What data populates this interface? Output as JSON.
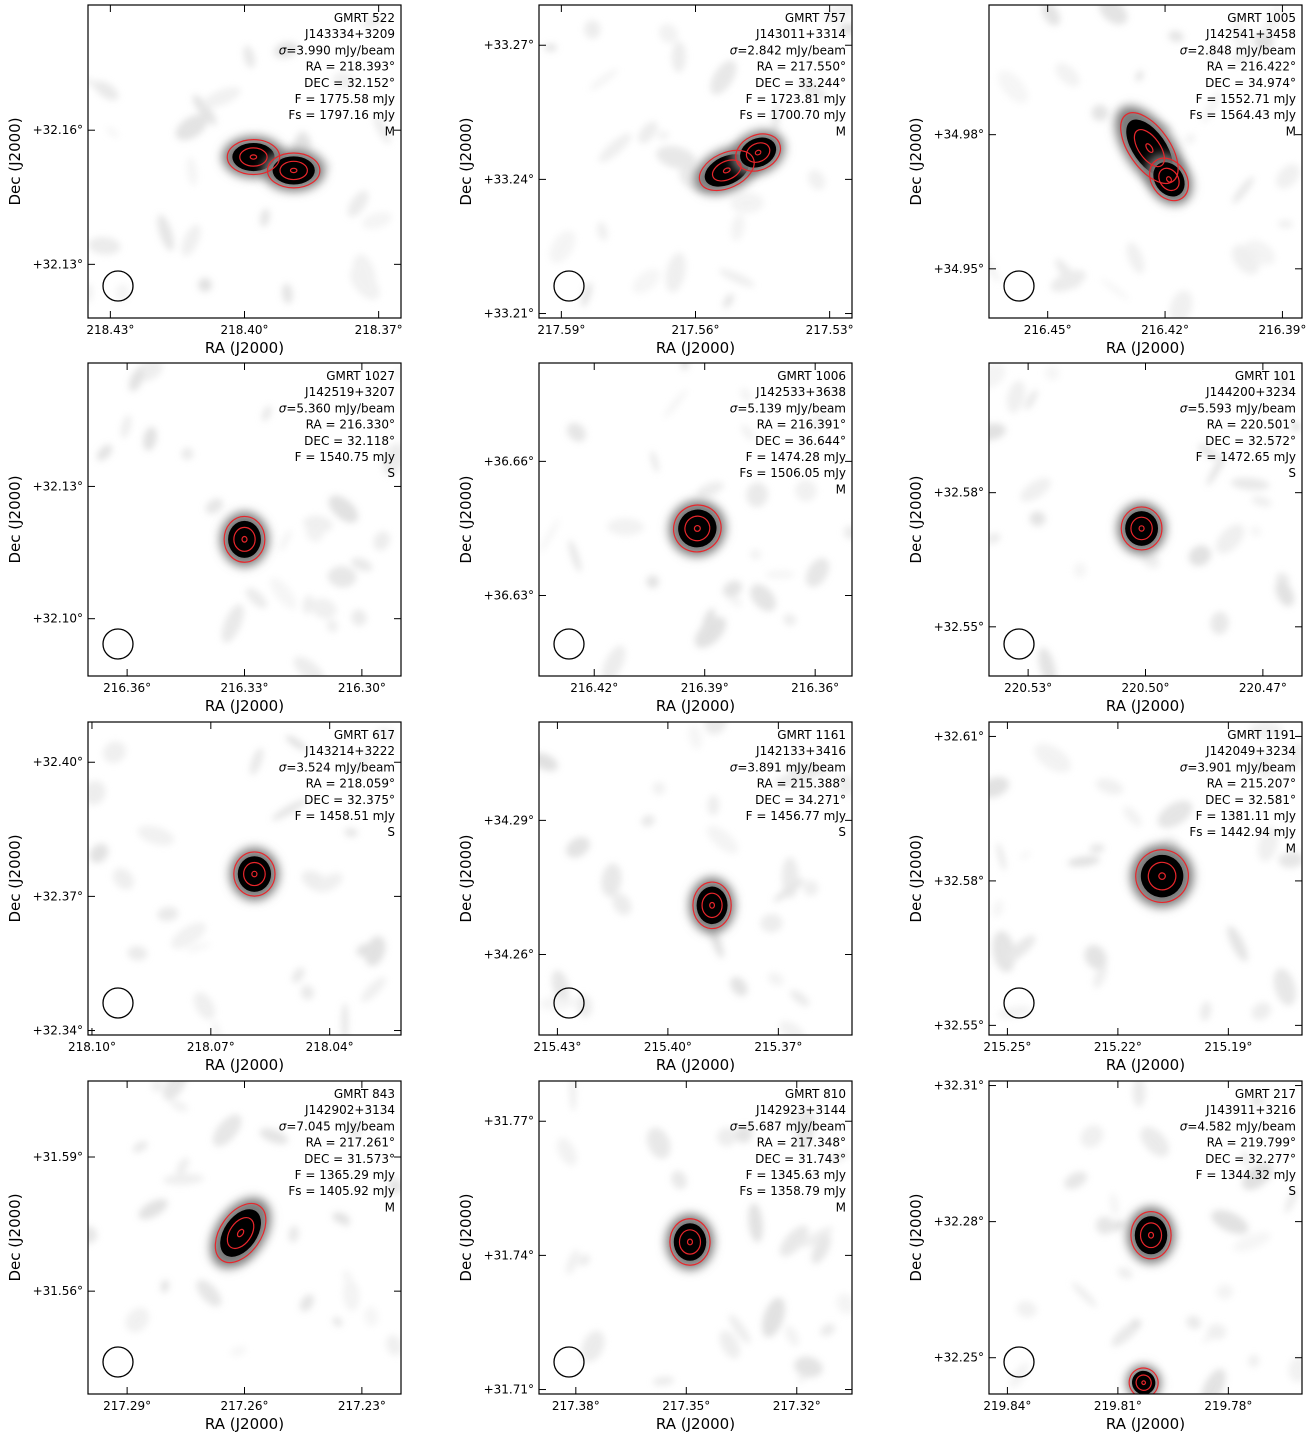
{
  "axes": {
    "xlabel": "RA (J2000)",
    "ylabel": "Dec (J2000)"
  },
  "colors": {
    "contour": "#e8262b",
    "frame": "#000000",
    "source": "#000000",
    "background": "#ffffff"
  },
  "chart_data": [
    {
      "type": "heatmap",
      "name": "GMRT 522",
      "id": "J143334+3209",
      "sigma": "3.990 mJy/beam",
      "ra_label": "RA = 218.393°",
      "dec_label": "DEC = 32.152°",
      "f_label": "F = 1775.58 mJy",
      "fs_label": "Fs = 1797.16 mJy",
      "class": "M",
      "ra": 218.393,
      "dec": 32.152,
      "xlim": [
        218.435,
        218.365
      ],
      "ylim": [
        32.118,
        32.188
      ],
      "xticks": [
        218.43,
        218.4,
        218.37
      ],
      "xtick_labels": [
        "218.43°",
        "218.40°",
        "218.37°"
      ],
      "yticks": [
        32.13,
        32.16
      ],
      "ytick_labels": [
        "+32.13°",
        "+32.16°"
      ],
      "components": [
        {
          "ra": 218.398,
          "dec": 32.154,
          "a": 0.0045,
          "b": 0.003,
          "pa": 0
        },
        {
          "ra": 218.389,
          "dec": 32.151,
          "a": 0.0045,
          "b": 0.003,
          "pa": 0
        }
      ]
    },
    {
      "type": "heatmap",
      "name": "GMRT 757",
      "id": "J143011+3314",
      "sigma": "2.842 mJy/beam",
      "ra_label": "RA = 217.550°",
      "dec_label": "DEC = 33.244°",
      "f_label": "F = 1723.81 mJy",
      "fs_label": "Fs = 1700.70 mJy",
      "class": "M",
      "ra": 217.55,
      "dec": 33.244,
      "xlim": [
        217.595,
        217.525
      ],
      "ylim": [
        33.209,
        33.279
      ],
      "xticks": [
        217.59,
        217.56,
        217.53
      ],
      "xtick_labels": [
        "217.59°",
        "217.56°",
        "217.53°"
      ],
      "yticks": [
        33.21,
        33.24,
        33.27
      ],
      "ytick_labels": [
        "+33.21°",
        "+33.24°",
        "+33.27°"
      ],
      "components": [
        {
          "ra": 217.553,
          "dec": 33.242,
          "a": 0.005,
          "b": 0.003,
          "pa": -25
        },
        {
          "ra": 217.546,
          "dec": 33.246,
          "a": 0.004,
          "b": 0.003,
          "pa": -25
        }
      ]
    },
    {
      "type": "heatmap",
      "name": "GMRT 1005",
      "id": "J142541+3458",
      "sigma": "2.848 mJy/beam",
      "ra_label": "RA = 216.422°",
      "dec_label": "DEC = 34.974°",
      "f_label": "F = 1552.71 mJy",
      "fs_label": "Fs = 1564.43 mJy",
      "class": "M",
      "ra": 216.422,
      "dec": 34.974,
      "xlim": [
        216.465,
        216.385
      ],
      "ylim": [
        34.939,
        35.009
      ],
      "xticks": [
        216.45,
        216.42,
        216.39
      ],
      "xtick_labels": [
        "216.45°",
        "216.42°",
        "216.39°"
      ],
      "yticks": [
        34.95,
        34.98
      ],
      "ytick_labels": [
        "+34.95°",
        "+34.98°"
      ],
      "components": [
        {
          "ra": 216.424,
          "dec": 34.977,
          "a": 0.008,
          "b": 0.0035,
          "pa": 55
        },
        {
          "ra": 216.419,
          "dec": 34.97,
          "a": 0.0045,
          "b": 0.003,
          "pa": 55
        }
      ]
    },
    {
      "type": "heatmap",
      "name": "GMRT 1027",
      "id": "J142519+3207",
      "sigma": "5.360 mJy/beam",
      "ra_label": "RA = 216.330°",
      "dec_label": "DEC = 32.118°",
      "f_label": "F = 1540.75 mJy",
      "fs_label": "",
      "class": "S",
      "ra": 216.33,
      "dec": 32.118,
      "xlim": [
        216.37,
        216.29
      ],
      "ylim": [
        32.087,
        32.158
      ],
      "xticks": [
        216.36,
        216.33,
        216.3
      ],
      "xtick_labels": [
        "216.36°",
        "216.33°",
        "216.30°"
      ],
      "yticks": [
        32.1,
        32.13
      ],
      "ytick_labels": [
        "+32.10°",
        "+32.13°"
      ],
      "components": [
        {
          "ra": 216.33,
          "dec": 32.118,
          "a": 0.004,
          "b": 0.004,
          "pa": 0
        }
      ]
    },
    {
      "type": "heatmap",
      "name": "GMRT 1006",
      "id": "J142533+3638",
      "sigma": "5.139 mJy/beam",
      "ra_label": "RA = 216.391°",
      "dec_label": "DEC = 36.644°",
      "f_label": "F = 1474.28 mJy",
      "fs_label": "Fs = 1506.05 mJy",
      "class": "M",
      "ra": 216.391,
      "dec": 36.644,
      "xlim": [
        216.435,
        216.35
      ],
      "ylim": [
        36.612,
        36.682
      ],
      "xticks": [
        216.42,
        216.39,
        216.36
      ],
      "xtick_labels": [
        "216.42°",
        "216.39°",
        "216.36°"
      ],
      "yticks": [
        36.63,
        36.66
      ],
      "ytick_labels": [
        "+36.63°",
        "+36.66°"
      ],
      "components": [
        {
          "ra": 216.392,
          "dec": 36.645,
          "a": 0.005,
          "b": 0.004,
          "pa": -30
        }
      ]
    },
    {
      "type": "heatmap",
      "name": "GMRT 101",
      "id": "J144200+3234",
      "sigma": "5.593 mJy/beam",
      "ra_label": "RA = 220.501°",
      "dec_label": "DEC = 32.572°",
      "f_label": "F = 1472.65 mJy",
      "fs_label": "",
      "class": "S",
      "ra": 220.501,
      "dec": 32.572,
      "xlim": [
        220.54,
        220.46
      ],
      "ylim": [
        32.539,
        32.609
      ],
      "xticks": [
        220.53,
        220.5,
        220.47
      ],
      "xtick_labels": [
        "220.53°",
        "220.50°",
        "220.47°"
      ],
      "yticks": [
        32.55,
        32.58
      ],
      "ytick_labels": [
        "+32.55°",
        "+32.58°"
      ],
      "components": [
        {
          "ra": 220.501,
          "dec": 32.572,
          "a": 0.004,
          "b": 0.0037,
          "pa": 0
        }
      ]
    },
    {
      "type": "heatmap",
      "name": "GMRT 617",
      "id": "J143214+3222",
      "sigma": "3.524 mJy/beam",
      "ra_label": "RA = 218.059°",
      "dec_label": "DEC = 32.375°",
      "f_label": "F = 1458.51 mJy",
      "fs_label": "",
      "class": "S",
      "ra": 218.059,
      "dec": 32.375,
      "xlim": [
        218.101,
        218.022
      ],
      "ylim": [
        32.339,
        32.409
      ],
      "xticks": [
        218.1,
        218.07,
        218.04
      ],
      "xtick_labels": [
        "218.10°",
        "218.07°",
        "218.04°"
      ],
      "yticks": [
        32.34,
        32.37,
        32.4
      ],
      "ytick_labels": [
        "+32.34°",
        "+32.37°",
        "+32.40°"
      ],
      "components": [
        {
          "ra": 218.059,
          "dec": 32.375,
          "a": 0.004,
          "b": 0.0038,
          "pa": 0
        }
      ]
    },
    {
      "type": "heatmap",
      "name": "GMRT 1161",
      "id": "J142133+3416",
      "sigma": "3.891 mJy/beam",
      "ra_label": "RA = 215.388°",
      "dec_label": "DEC = 34.271°",
      "f_label": "F = 1456.77 mJy",
      "fs_label": "",
      "class": "S",
      "ra": 215.388,
      "dec": 34.271,
      "xlim": [
        215.435,
        215.35
      ],
      "ylim": [
        34.242,
        34.312
      ],
      "xticks": [
        215.43,
        215.4,
        215.37
      ],
      "xtick_labels": [
        "215.43°",
        "215.40°",
        "215.37°"
      ],
      "yticks": [
        34.26,
        34.29
      ],
      "ytick_labels": [
        "+34.26°",
        "+34.29°"
      ],
      "components": [
        {
          "ra": 215.388,
          "dec": 34.271,
          "a": 0.004,
          "b": 0.004,
          "pa": 0
        }
      ]
    },
    {
      "type": "heatmap",
      "name": "GMRT 1191",
      "id": "J142049+3234",
      "sigma": "3.901 mJy/beam",
      "ra_label": "RA = 215.207°",
      "dec_label": "DEC = 32.581°",
      "f_label": "F = 1381.11 mJy",
      "fs_label": "Fs = 1442.94 mJy",
      "class": "M",
      "ra": 215.207,
      "dec": 32.581,
      "xlim": [
        215.255,
        215.17
      ],
      "ylim": [
        32.548,
        32.613
      ],
      "xticks": [
        215.25,
        215.22,
        215.19
      ],
      "xtick_labels": [
        "215.25°",
        "215.22°",
        "215.19°"
      ],
      "yticks": [
        32.55,
        32.58,
        32.61
      ],
      "ytick_labels": [
        "+32.55°",
        "+32.58°",
        "+32.61°"
      ],
      "components": [
        {
          "ra": 215.208,
          "dec": 32.581,
          "a": 0.0055,
          "b": 0.0042,
          "pa": -35
        }
      ]
    },
    {
      "type": "heatmap",
      "name": "GMRT 843",
      "id": "J142902+3134",
      "sigma": "7.045 mJy/beam",
      "ra_label": "RA = 217.261°",
      "dec_label": "DEC = 31.573°",
      "f_label": "F = 1365.29 mJy",
      "fs_label": "Fs = 1405.92 mJy",
      "class": "M",
      "ra": 217.261,
      "dec": 31.573,
      "xlim": [
        217.3,
        217.22
      ],
      "ylim": [
        31.537,
        31.607
      ],
      "xticks": [
        217.29,
        217.26,
        217.23
      ],
      "xtick_labels": [
        "217.29°",
        "217.26°",
        "217.23°"
      ],
      "yticks": [
        31.56,
        31.59
      ],
      "ytick_labels": [
        "+31.56°",
        "+31.59°"
      ],
      "components": [
        {
          "ra": 217.261,
          "dec": 31.573,
          "a": 0.0065,
          "b": 0.0035,
          "pa": -55
        }
      ]
    },
    {
      "type": "heatmap",
      "name": "GMRT 810",
      "id": "J142923+3144",
      "sigma": "5.687 mJy/beam",
      "ra_label": "RA = 217.348°",
      "dec_label": "DEC = 31.743°",
      "f_label": "F = 1345.63 mJy",
      "fs_label": "Fs = 1358.79 mJy",
      "class": "M",
      "ra": 217.348,
      "dec": 31.743,
      "xlim": [
        217.39,
        217.305
      ],
      "ylim": [
        31.709,
        31.779
      ],
      "xticks": [
        217.38,
        217.35,
        217.32
      ],
      "xtick_labels": [
        "217.38°",
        "217.35°",
        "217.32°"
      ],
      "yticks": [
        31.71,
        31.74,
        31.77
      ],
      "ytick_labels": [
        "+31.71°",
        "+31.74°",
        "+31.77°"
      ],
      "components": [
        {
          "ra": 217.349,
          "dec": 31.743,
          "a": 0.0042,
          "b": 0.004,
          "pa": 0
        }
      ]
    },
    {
      "type": "heatmap",
      "name": "GMRT 217",
      "id": "J143911+3216",
      "sigma": "4.582 mJy/beam",
      "ra_label": "RA = 219.799°",
      "dec_label": "DEC = 32.277°",
      "f_label": "F = 1344.32 mJy",
      "fs_label": "",
      "class": "S",
      "ra": 219.799,
      "dec": 32.277,
      "xlim": [
        219.845,
        219.76
      ],
      "ylim": [
        32.242,
        32.311
      ],
      "xticks": [
        219.84,
        219.81,
        219.78
      ],
      "xtick_labels": [
        "219.84°",
        "219.81°",
        "219.78°"
      ],
      "yticks": [
        32.25,
        32.28,
        32.31
      ],
      "ytick_labels": [
        "+32.25°",
        "+32.28°",
        "+32.31°"
      ],
      "components": [
        {
          "ra": 219.801,
          "dec": 32.277,
          "a": 0.0042,
          "b": 0.004,
          "pa": 0
        },
        {
          "ra": 219.803,
          "dec": 32.2445,
          "a": 0.003,
          "b": 0.0025,
          "pa": -30
        }
      ]
    }
  ]
}
